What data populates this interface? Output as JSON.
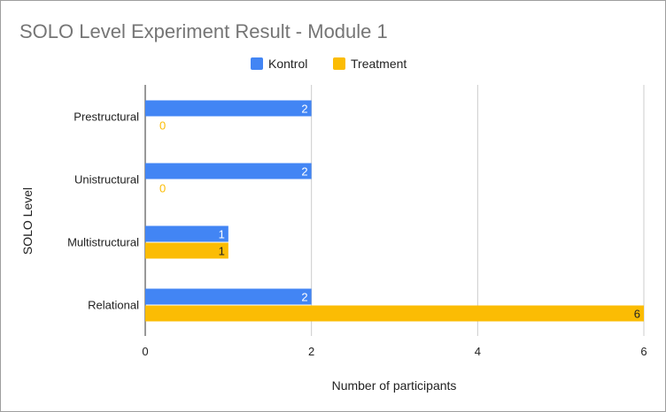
{
  "chart_data": {
    "type": "bar",
    "orientation": "horizontal",
    "title": "SOLO Level Experiment Result - Module 1",
    "xlabel": "Number of participants",
    "ylabel": "SOLO Level",
    "categories": [
      "Prestructural",
      "Unistructural",
      "Multistructural",
      "Relational"
    ],
    "series": [
      {
        "name": "Kontrol",
        "values": [
          2,
          2,
          1,
          2
        ],
        "color": "#4285f4",
        "label_color": "#ffffff"
      },
      {
        "name": "Treatment",
        "values": [
          0,
          0,
          1,
          6
        ],
        "color": "#fbbc04",
        "label_color": "#222222",
        "zero_label_color": "#fbbc04"
      }
    ],
    "xlim": [
      0,
      6
    ],
    "xticks": [
      "0",
      "2",
      "4",
      "6"
    ],
    "grid": true,
    "legend_position": "top"
  }
}
